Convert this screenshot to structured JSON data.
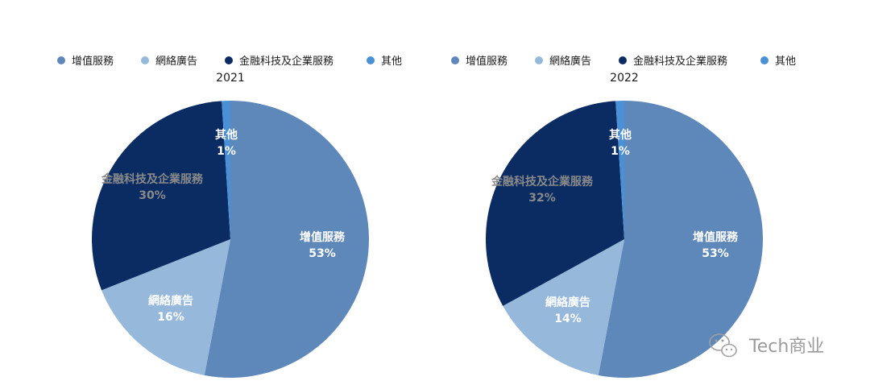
{
  "chart_data": [
    {
      "type": "pie",
      "title": "2021",
      "categories": [
        "增值服務",
        "網絡廣告",
        "金融科技及企業服務",
        "其他"
      ],
      "values": [
        53,
        16,
        30,
        1
      ],
      "labels": [
        "53%",
        "16%",
        "30%",
        "1%"
      ],
      "colors": [
        "#5f88ba",
        "#96b8db",
        "#0a2c63",
        "#4a90d6"
      ],
      "label_colors": [
        "#ffffff",
        "#ffffff",
        "#8a8a8a",
        "#ffffff"
      ],
      "start_angle_deg": 0,
      "direction": "clockwise",
      "legend": "top"
    },
    {
      "type": "pie",
      "title": "2022",
      "categories": [
        "增值服務",
        "網絡廣告",
        "金融科技及企業服務",
        "其他"
      ],
      "values": [
        53,
        14,
        32,
        1
      ],
      "labels": [
        "53%",
        "14%",
        "32%",
        "1%"
      ],
      "colors": [
        "#5f88ba",
        "#96b8db",
        "#0a2c63",
        "#4a90d6"
      ],
      "label_colors": [
        "#ffffff",
        "#ffffff",
        "#8a8a8a",
        "#ffffff"
      ],
      "start_angle_deg": 0,
      "direction": "clockwise",
      "legend": "top"
    }
  ],
  "watermark": {
    "text": "Tech商业",
    "icon": "wechat-icon"
  }
}
